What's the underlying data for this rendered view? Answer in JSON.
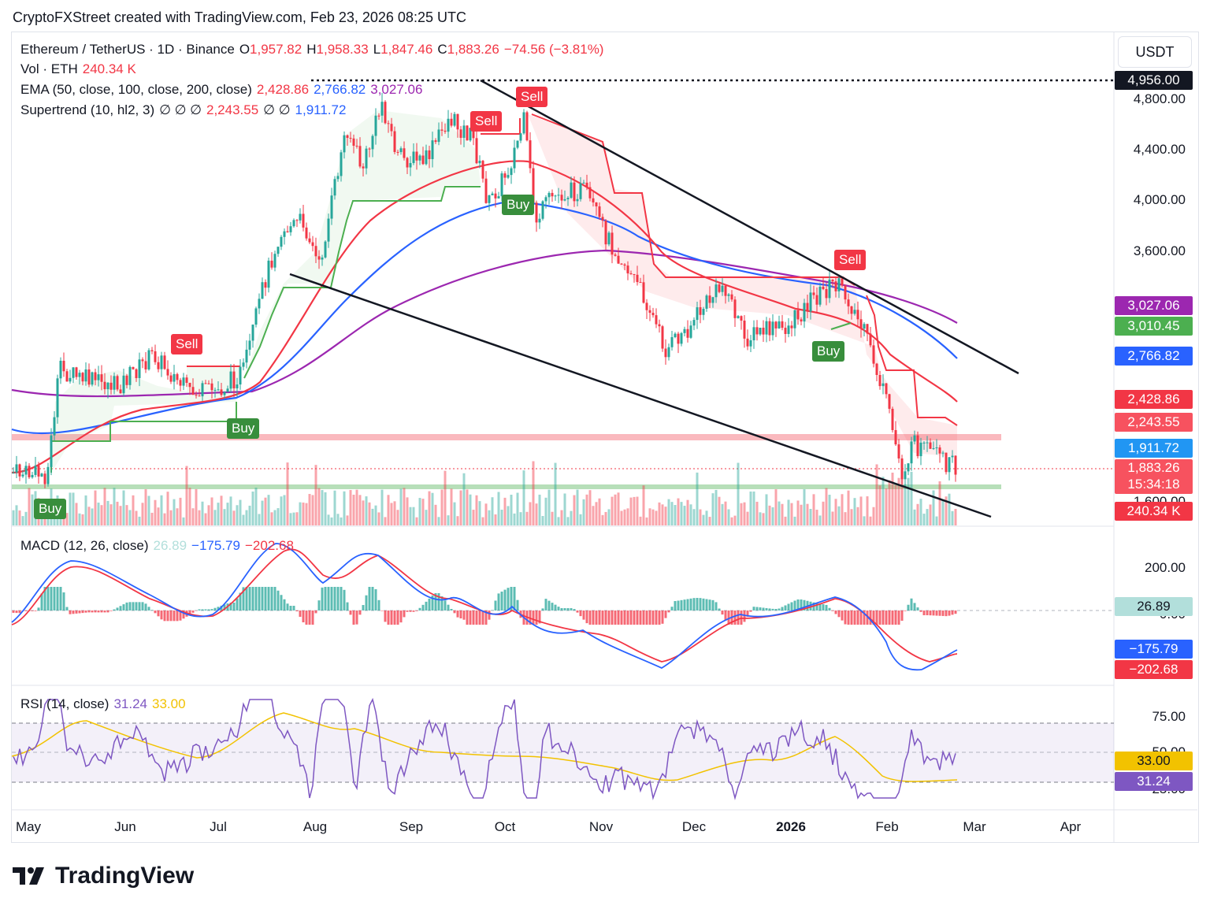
{
  "header": {
    "attribution": "CryptoFXStreet created with TradingView.com, Feb 23, 2026 08:25 UTC"
  },
  "unit_button": "USDT",
  "legend": {
    "symbol": "Ethereum / TetherUS · 1D · Binance",
    "o_label": "O",
    "o_value": "1,957.82",
    "h_label": "H",
    "h_value": "1,958.33",
    "l_label": "L",
    "l_value": "1,847.46",
    "c_label": "C",
    "c_value": "1,883.26",
    "change": "−74.56 (−3.81%)",
    "vol_label": "Vol · ETH",
    "vol_value": "240.34 K",
    "ema_label": "EMA (50, close, 100, close, 200, close)",
    "ema50": "2,428.86",
    "ema100": "2,766.82",
    "ema200": "3,027.06",
    "st_label": "Supertrend (10, hl2, 3)",
    "st_slots": "∅ ∅ ∅",
    "st_value": "2,243.55",
    "st_slots2": "∅ ∅",
    "st_value2": "1,911.72",
    "macd_label": "MACD (12, 26, close)",
    "macd_hist": "26.89",
    "macd_line": "−175.79",
    "macd_signal": "−202.68",
    "rsi_label": "RSI (14, close)",
    "rsi_value": "31.24",
    "rsi_ma": "33.00"
  },
  "price_axis": [
    "4,800.00",
    "4,400.00",
    "4,000.00",
    "3,600.00",
    "1,600.00"
  ],
  "price_boxes": {
    "top_line": "4,956.00",
    "ema200": "3,027.06",
    "st_green": "3,010.45",
    "ema100": "2,766.82",
    "ema50": "2,428.86",
    "st_red": "2,243.55",
    "st_blue": "1,911.72",
    "close": "1,883.26",
    "countdown": "15:34:18",
    "volume": "240.34 K"
  },
  "macd_axis": [
    "200.00",
    "0.00"
  ],
  "macd_boxes": {
    "hist": "26.89",
    "macd": "−175.79",
    "signal": "−202.68"
  },
  "rsi_axis": [
    "75.00",
    "50.00",
    "25.00"
  ],
  "rsi_boxes": {
    "ma": "33.00",
    "rsi": "31.24"
  },
  "x_axis": [
    "May",
    "Jun",
    "Jul",
    "Aug",
    "Sep",
    "Oct",
    "Nov",
    "Dec",
    "2026",
    "Feb",
    "Mar",
    "Apr"
  ],
  "signals": {
    "sell": "Sell",
    "buy": "Buy"
  },
  "logo": "TradingView",
  "colors": {
    "up": "#26a69a",
    "down": "#f23645",
    "ema50": "#f23645",
    "ema100": "#2962ff",
    "ema200": "#9c27b0",
    "st_up": "#4caf50",
    "st_down": "#f23645",
    "rsi": "#7e57c2",
    "rsi_ma": "#f2c200"
  },
  "chart_data": {
    "type": "line",
    "title": "Ethereum / TetherUS · 1D · Binance",
    "x": [
      "May",
      "Jun",
      "Jul",
      "Aug",
      "Sep",
      "Oct",
      "Nov",
      "Dec",
      "2026",
      "Feb"
    ],
    "series": [
      {
        "name": "ETHUSDT close",
        "values": [
          1840,
          2550,
          2450,
          3750,
          4400,
          4250,
          3900,
          3000,
          2950,
          2400
        ]
      },
      {
        "name": "EMA 50",
        "values": [
          1880,
          2300,
          2450,
          3100,
          4050,
          4300,
          3900,
          3200,
          3050,
          2429
        ]
      },
      {
        "name": "EMA 100",
        "values": [
          2000,
          2200,
          2380,
          2900,
          3750,
          4000,
          3950,
          3350,
          3150,
          2767
        ]
      },
      {
        "name": "EMA 200",
        "values": [
          2460,
          2450,
          2490,
          2750,
          3150,
          3500,
          3600,
          3430,
          3300,
          3027
        ]
      }
    ],
    "levels": {
      "horizontal_line": 4956.0,
      "resistance_zone": 2150,
      "support_zone": 1740,
      "last_close": 1883.26
    },
    "ylim": [
      1550,
      5000
    ],
    "macd": {
      "hist": 26.89,
      "macd": -175.79,
      "signal": -202.68
    },
    "rsi": {
      "rsi": 31.24,
      "ma": 33.0,
      "levels": [
        70,
        50,
        30
      ]
    }
  }
}
